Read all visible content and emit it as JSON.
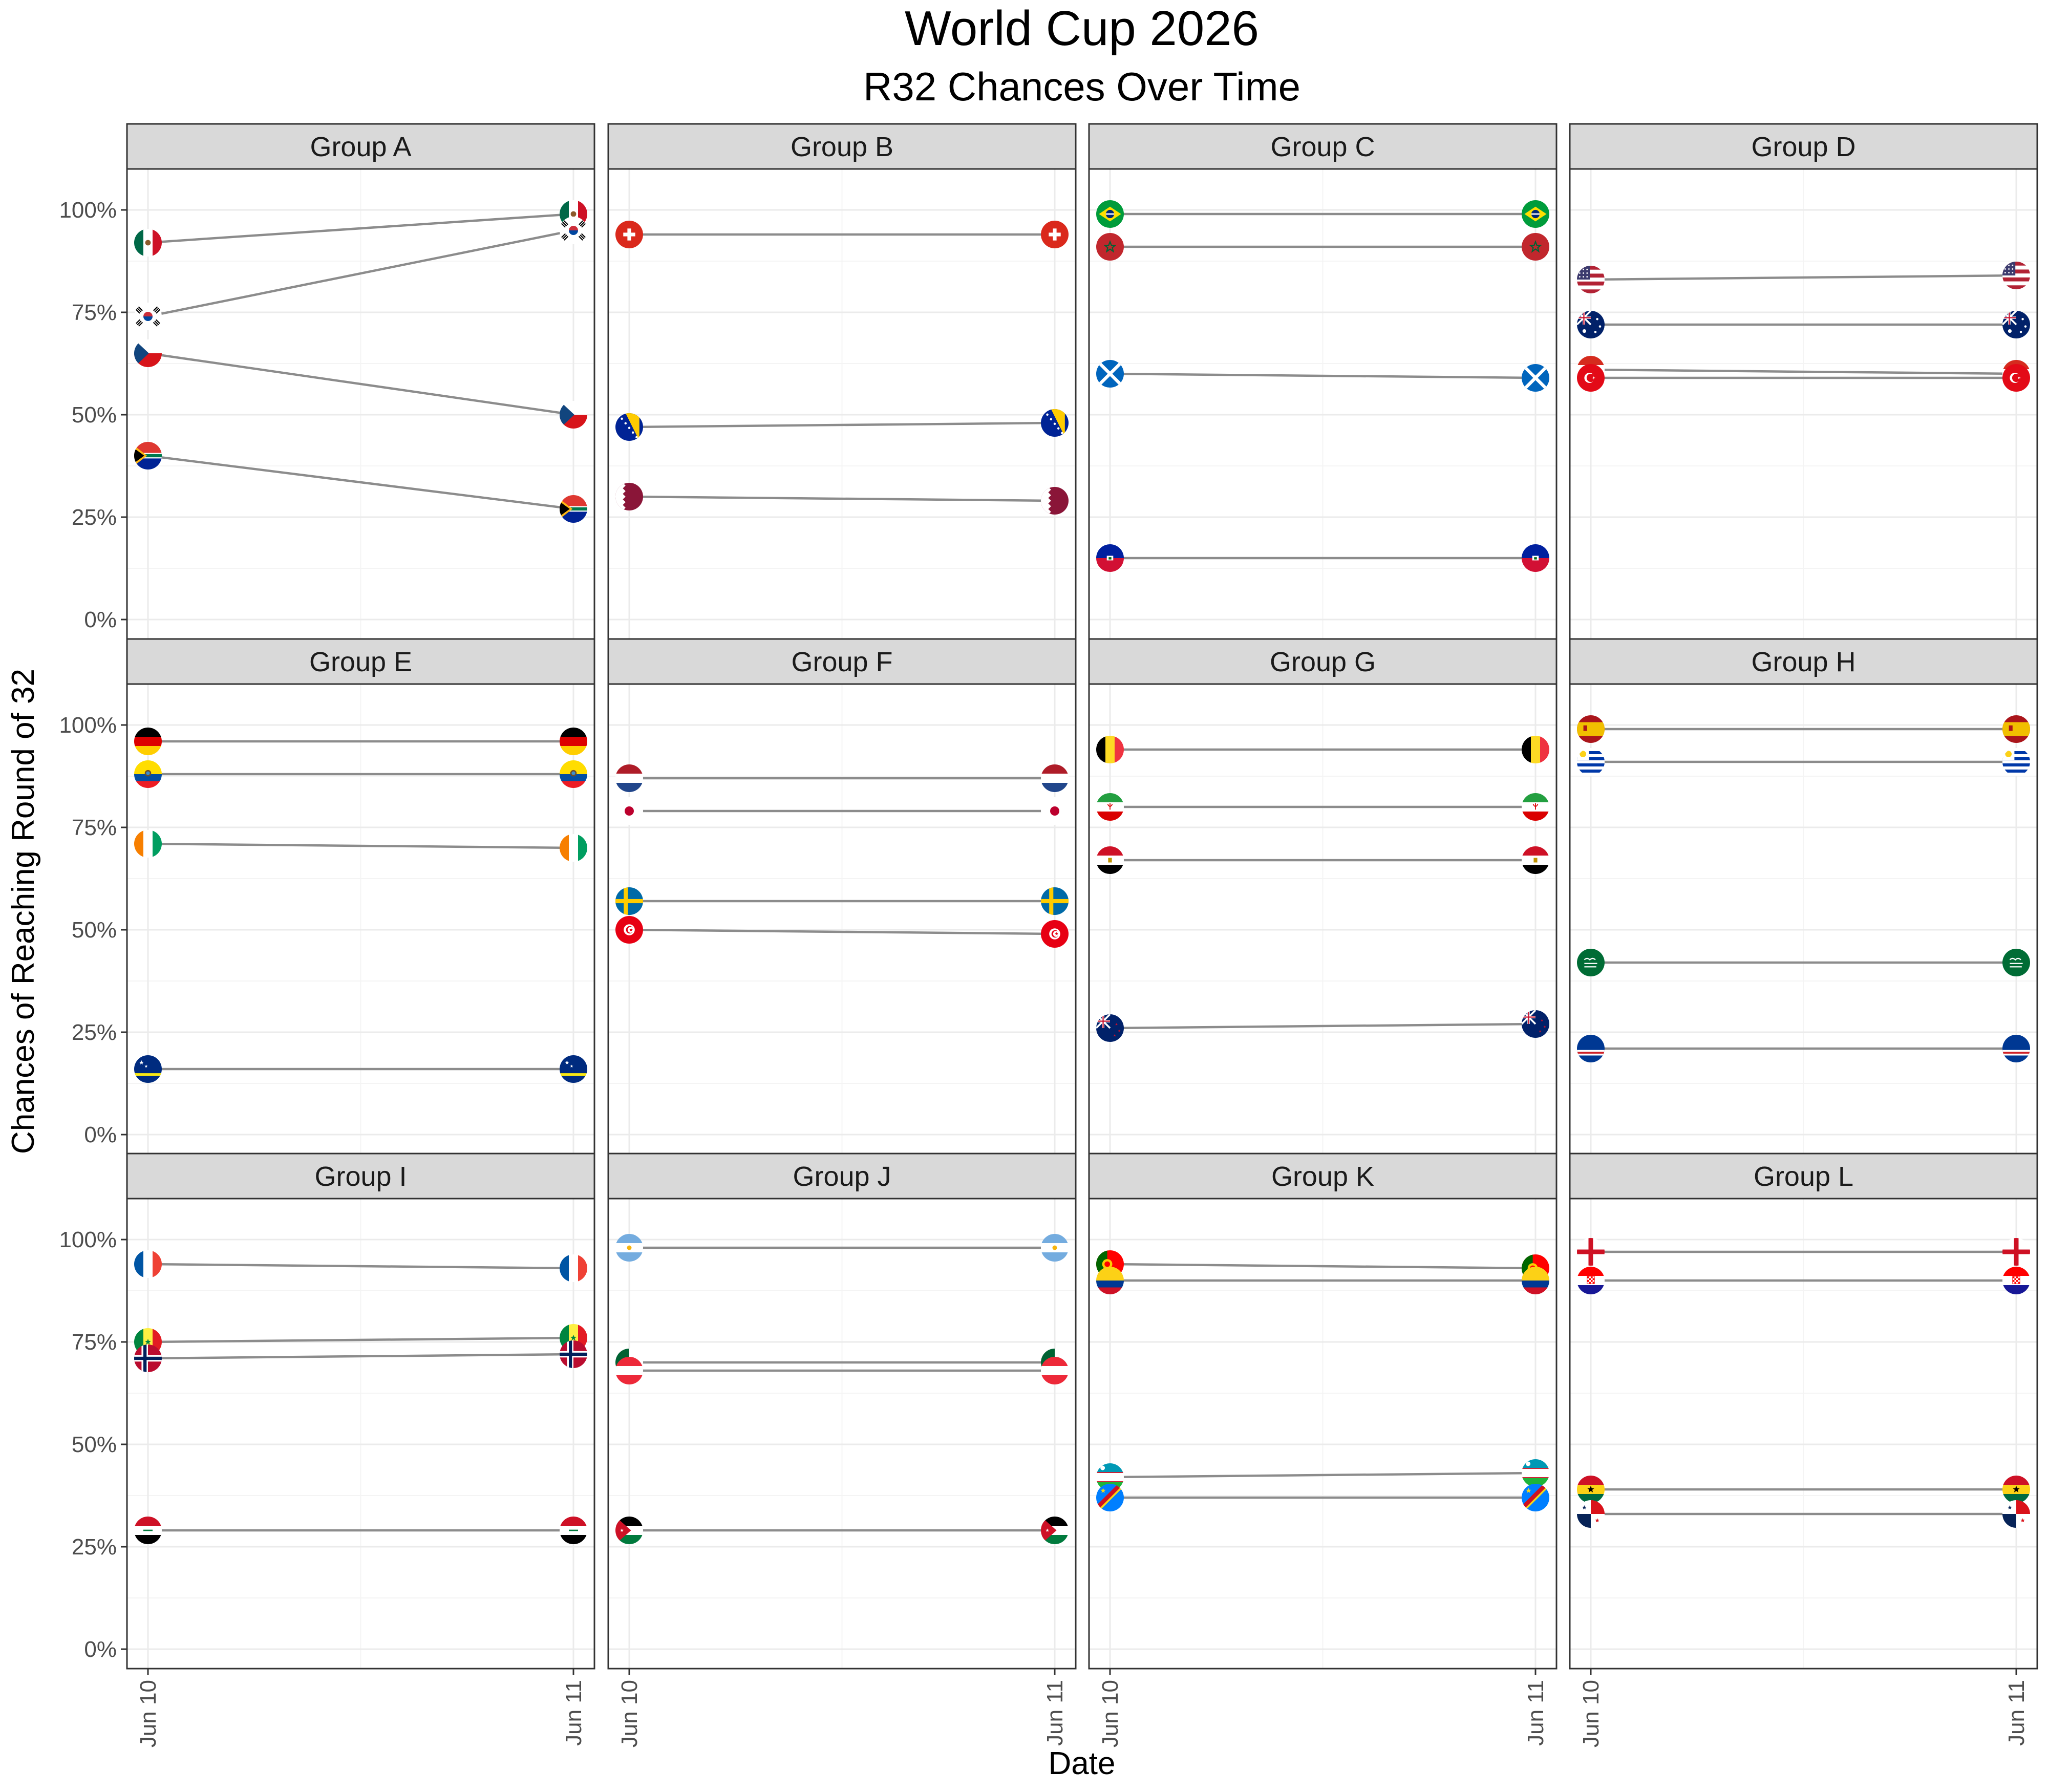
{
  "chart_data": {
    "type": "line",
    "title": "World Cup 2026",
    "subtitle": "R32 Chances Over Time",
    "xlabel": "Date",
    "ylabel": "Chances of Reaching Round of 32",
    "x": [
      "Jun 10",
      "Jun 11"
    ],
    "y_ticks": [
      "0%",
      "25%",
      "50%",
      "75%",
      "100%"
    ],
    "ylim": [
      0,
      1.05
    ],
    "grid": true,
    "legend": "none",
    "panels": [
      {
        "label": "Group A",
        "series": [
          {
            "flag": "mexico",
            "values": [
              0.92,
              0.99
            ]
          },
          {
            "flag": "south-korea",
            "values": [
              0.74,
              0.95
            ]
          },
          {
            "flag": "czechia",
            "values": [
              0.65,
              0.5
            ]
          },
          {
            "flag": "south-africa",
            "values": [
              0.4,
              0.27
            ]
          }
        ]
      },
      {
        "label": "Group B",
        "series": [
          {
            "flag": "switzerland",
            "values": [
              0.94,
              0.94
            ]
          },
          {
            "flag": "bosnia",
            "values": [
              0.47,
              0.48
            ]
          },
          {
            "flag": "qatar",
            "values": [
              0.3,
              0.29
            ]
          }
        ]
      },
      {
        "label": "Group C",
        "series": [
          {
            "flag": "brazil",
            "values": [
              0.99,
              0.99
            ]
          },
          {
            "flag": "morocco",
            "values": [
              0.91,
              0.91
            ]
          },
          {
            "flag": "scotland",
            "values": [
              0.6,
              0.59
            ]
          },
          {
            "flag": "haiti",
            "values": [
              0.15,
              0.15
            ]
          }
        ]
      },
      {
        "label": "Group D",
        "series": [
          {
            "flag": "usa",
            "values": [
              0.83,
              0.84
            ]
          },
          {
            "flag": "australia",
            "values": [
              0.72,
              0.72
            ]
          },
          {
            "flag": "paraguay",
            "values": [
              0.61,
              0.6
            ]
          },
          {
            "flag": "turkey",
            "values": [
              0.59,
              0.59
            ]
          }
        ]
      },
      {
        "label": "Group E",
        "series": [
          {
            "flag": "germany",
            "values": [
              0.96,
              0.96
            ]
          },
          {
            "flag": "ecuador",
            "values": [
              0.88,
              0.88
            ]
          },
          {
            "flag": "ivory-coast",
            "values": [
              0.71,
              0.7
            ]
          },
          {
            "flag": "curacao",
            "values": [
              0.16,
              0.16
            ]
          }
        ]
      },
      {
        "label": "Group F",
        "series": [
          {
            "flag": "netherlands",
            "values": [
              0.87,
              0.87
            ]
          },
          {
            "flag": "japan",
            "values": [
              0.79,
              0.79
            ]
          },
          {
            "flag": "sweden",
            "values": [
              0.57,
              0.57
            ]
          },
          {
            "flag": "tunisia",
            "values": [
              0.5,
              0.49
            ]
          }
        ]
      },
      {
        "label": "Group G",
        "series": [
          {
            "flag": "belgium",
            "values": [
              0.94,
              0.94
            ]
          },
          {
            "flag": "iran",
            "values": [
              0.8,
              0.8
            ]
          },
          {
            "flag": "egypt",
            "values": [
              0.67,
              0.67
            ]
          },
          {
            "flag": "new-zealand",
            "values": [
              0.26,
              0.27
            ]
          }
        ]
      },
      {
        "label": "Group H",
        "series": [
          {
            "flag": "spain",
            "values": [
              0.99,
              0.99
            ]
          },
          {
            "flag": "uruguay",
            "values": [
              0.91,
              0.91
            ]
          },
          {
            "flag": "saudi-arabia",
            "values": [
              0.42,
              0.42
            ]
          },
          {
            "flag": "cape-verde",
            "values": [
              0.21,
              0.21
            ]
          }
        ]
      },
      {
        "label": "Group I",
        "series": [
          {
            "flag": "france",
            "values": [
              0.94,
              0.93
            ]
          },
          {
            "flag": "senegal",
            "values": [
              0.75,
              0.76
            ]
          },
          {
            "flag": "norway",
            "values": [
              0.71,
              0.72
            ]
          },
          {
            "flag": "iraq",
            "values": [
              0.29,
              0.29
            ]
          }
        ]
      },
      {
        "label": "Group J",
        "series": [
          {
            "flag": "argentina",
            "values": [
              0.98,
              0.98
            ]
          },
          {
            "flag": "algeria",
            "values": [
              0.7,
              0.7
            ]
          },
          {
            "flag": "austria",
            "values": [
              0.68,
              0.68
            ]
          },
          {
            "flag": "jordan",
            "values": [
              0.29,
              0.29
            ]
          }
        ]
      },
      {
        "label": "Group K",
        "series": [
          {
            "flag": "portugal",
            "values": [
              0.94,
              0.93
            ]
          },
          {
            "flag": "colombia",
            "values": [
              0.9,
              0.9
            ]
          },
          {
            "flag": "uzbekistan",
            "values": [
              0.42,
              0.43
            ]
          },
          {
            "flag": "dr-congo",
            "values": [
              0.37,
              0.37
            ]
          }
        ]
      },
      {
        "label": "Group L",
        "series": [
          {
            "flag": "england",
            "values": [
              0.97,
              0.97
            ]
          },
          {
            "flag": "croatia",
            "values": [
              0.9,
              0.9
            ]
          },
          {
            "flag": "ghana",
            "values": [
              0.39,
              0.39
            ]
          },
          {
            "flag": "panama",
            "values": [
              0.33,
              0.33
            ]
          }
        ]
      }
    ]
  }
}
